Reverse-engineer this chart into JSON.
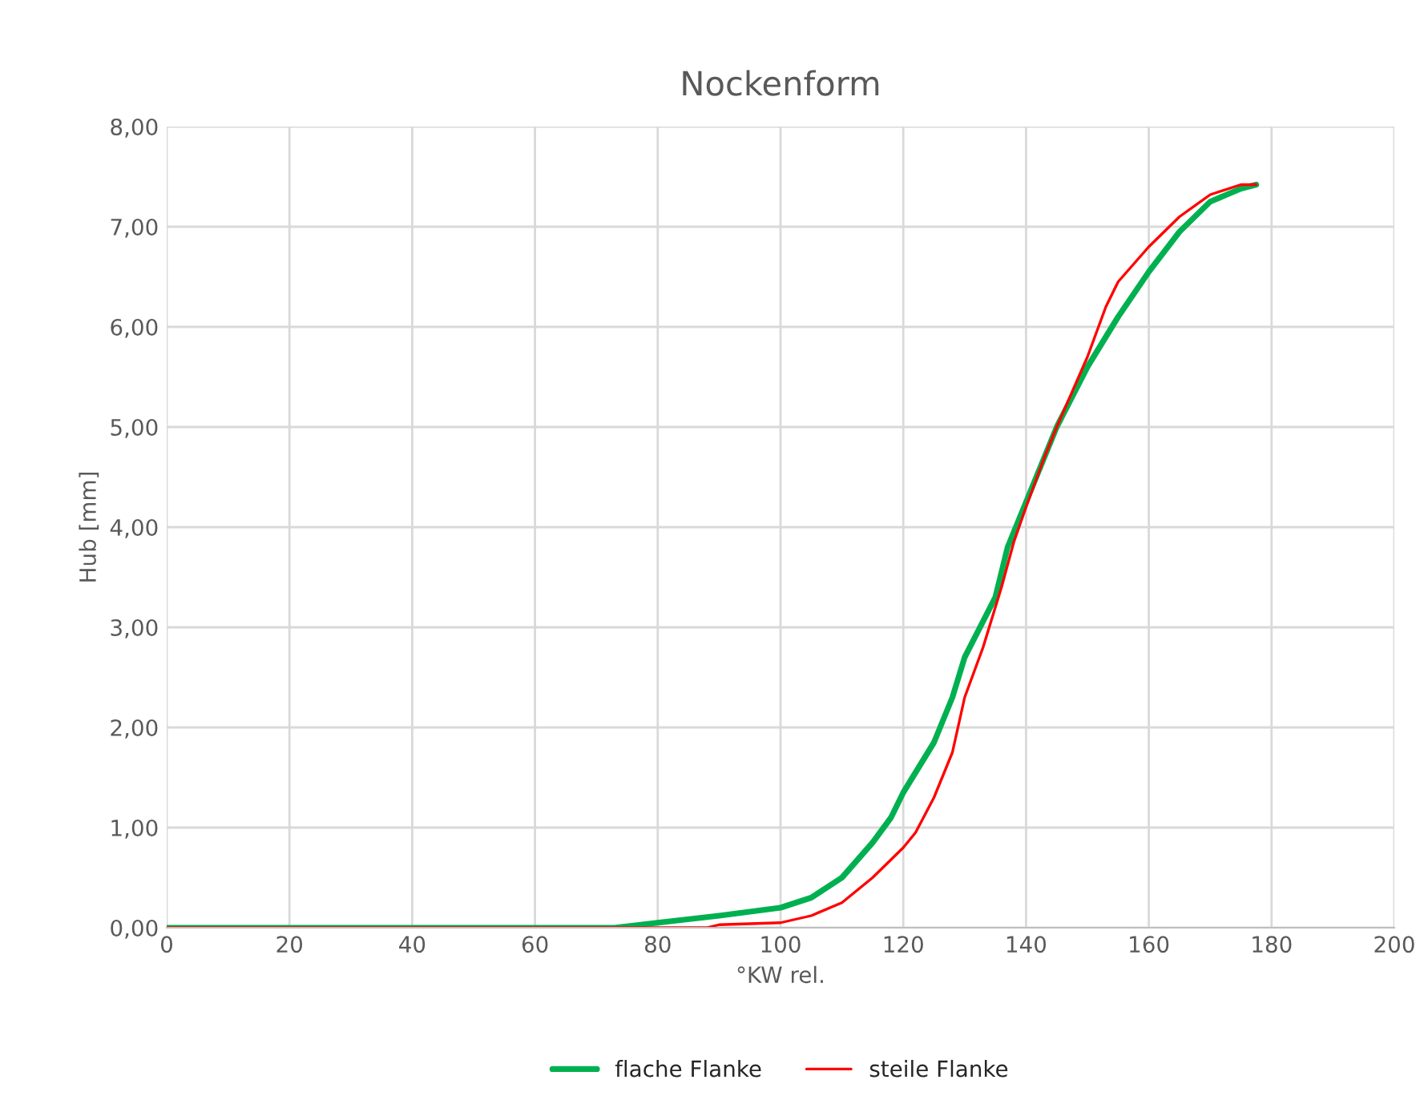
{
  "chart_data": {
    "type": "line",
    "title": "Nockenform",
    "xlabel": "°KW rel.",
    "ylabel": "Hub [mm]",
    "xlim": [
      0,
      200
    ],
    "xticks": [
      0,
      20,
      40,
      60,
      80,
      100,
      120,
      140,
      160,
      180,
      200
    ],
    "ylim": [
      0,
      8
    ],
    "yticks": [
      {
        "value": 0,
        "label": "0,00"
      },
      {
        "value": 1,
        "label": "1,00"
      },
      {
        "value": 2,
        "label": "2,00"
      },
      {
        "value": 3,
        "label": "3,00"
      },
      {
        "value": 4,
        "label": "4,00"
      },
      {
        "value": 5,
        "label": "5,00"
      },
      {
        "value": 6,
        "label": "6,00"
      },
      {
        "value": 7,
        "label": "7,00"
      },
      {
        "value": 8,
        "label": "8,00"
      }
    ],
    "grid": true,
    "legend": "bottom",
    "marker": "none",
    "line_style": "solid",
    "series": [
      {
        "name": "flache Flanke",
        "color": "#00b050",
        "x": [
          0,
          73,
          80,
          90,
          100,
          105,
          110,
          115,
          118,
          120,
          125,
          128,
          130,
          135,
          137,
          140,
          143,
          145,
          150,
          155,
          160,
          165,
          170,
          175,
          177.5
        ],
        "values": [
          0,
          0,
          0.05,
          0.12,
          0.2,
          0.3,
          0.5,
          0.85,
          1.1,
          1.35,
          1.85,
          2.3,
          2.7,
          3.3,
          3.8,
          4.25,
          4.7,
          5.0,
          5.6,
          6.1,
          6.55,
          6.95,
          7.25,
          7.38,
          7.42
        ]
      },
      {
        "name": "steile Flanke",
        "color": "#ff0000",
        "x": [
          0,
          88,
          90,
          100,
          105,
          110,
          115,
          120,
          122,
          125,
          128,
          130,
          133,
          136,
          138,
          140,
          143,
          145,
          150,
          153,
          155,
          160,
          165,
          170,
          175,
          177.5
        ],
        "values": [
          0,
          0,
          0.03,
          0.05,
          0.12,
          0.25,
          0.5,
          0.8,
          0.95,
          1.3,
          1.75,
          2.3,
          2.8,
          3.4,
          3.85,
          4.2,
          4.7,
          5.0,
          5.7,
          6.2,
          6.45,
          6.8,
          7.1,
          7.32,
          7.42,
          7.42
        ]
      }
    ]
  }
}
